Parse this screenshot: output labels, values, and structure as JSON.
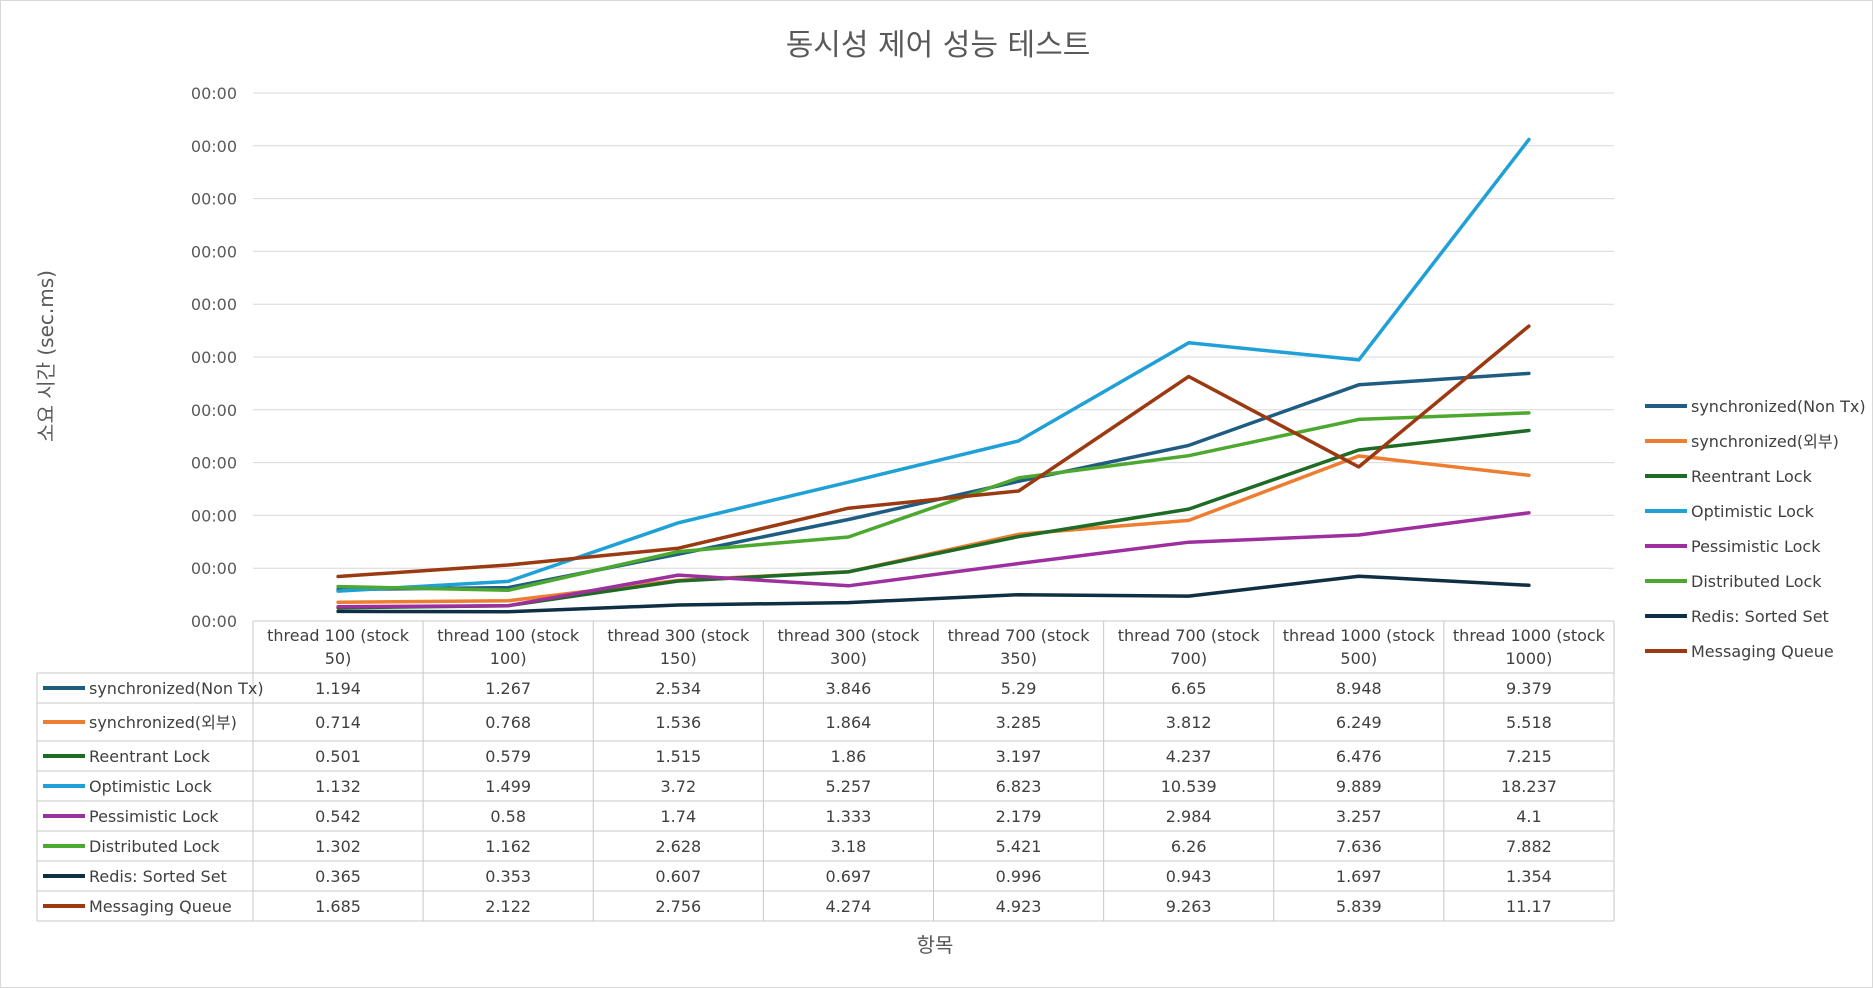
{
  "chart_data": {
    "type": "line",
    "title": "동시성 제어 성능 테스트",
    "xlabel": "항목",
    "ylabel": "소요 시간 (sec.ms)",
    "y_tick_labels": [
      "00:00",
      "00:00",
      "00:00",
      "00:00",
      "00:00",
      "00:00",
      "00:00",
      "00:00",
      "00:00",
      "00:00",
      "00:00"
    ],
    "ylim": [
      0,
      20
    ],
    "grid": true,
    "legend_position": "right",
    "data_table": true,
    "categories": [
      [
        "thread 100 (stock",
        "50)"
      ],
      [
        "thread 100 (stock",
        "100)"
      ],
      [
        "thread 300 (stock",
        "150)"
      ],
      [
        "thread 300 (stock",
        "300)"
      ],
      [
        "thread 700 (stock",
        "350)"
      ],
      [
        "thread 700 (stock",
        "700)"
      ],
      [
        "thread 1000 (stock",
        "500)"
      ],
      [
        "thread 1000 (stock",
        "1000)"
      ]
    ],
    "series": [
      {
        "name": "synchronized(Non Tx)",
        "color": "#1f5c82",
        "values": [
          "1.194",
          "1.267",
          "2.534",
          "3.846",
          "5.29",
          "6.65",
          "8.948",
          "9.379"
        ]
      },
      {
        "name": "synchronized(외부)",
        "color": "#ed7d31",
        "values": [
          "0.714",
          "0.768",
          "1.536",
          "1.864",
          "3.285",
          "3.812",
          "6.249",
          "5.518"
        ]
      },
      {
        "name": "Reentrant Lock",
        "color": "#1e6b26",
        "values": [
          "0.501",
          "0.579",
          "1.515",
          "1.86",
          "3.197",
          "4.237",
          "6.476",
          "7.215"
        ]
      },
      {
        "name": "Optimistic Lock",
        "color": "#1fa0d6",
        "values": [
          "1.132",
          "1.499",
          "3.72",
          "5.257",
          "6.823",
          "10.539",
          "9.889",
          "18.237"
        ]
      },
      {
        "name": "Pessimistic Lock",
        "color": "#9e2f9f",
        "values": [
          "0.542",
          "0.58",
          "1.74",
          "1.333",
          "2.179",
          "2.984",
          "3.257",
          "4.1"
        ]
      },
      {
        "name": "Distributed Lock",
        "color": "#4ca82f",
        "values": [
          "1.302",
          "1.162",
          "2.628",
          "3.18",
          "5.421",
          "6.26",
          "7.636",
          "7.882"
        ]
      },
      {
        "name": "Redis: Sorted Set",
        "color": "#0e2f44",
        "values": [
          "0.365",
          "0.353",
          "0.607",
          "0.697",
          "0.996",
          "0.943",
          "1.697",
          "1.354"
        ]
      },
      {
        "name": "Messaging Queue",
        "color": "#9b3a11",
        "values": [
          "1.685",
          "2.122",
          "2.756",
          "4.274",
          "4.923",
          "9.263",
          "5.839",
          "11.17"
        ]
      }
    ]
  }
}
